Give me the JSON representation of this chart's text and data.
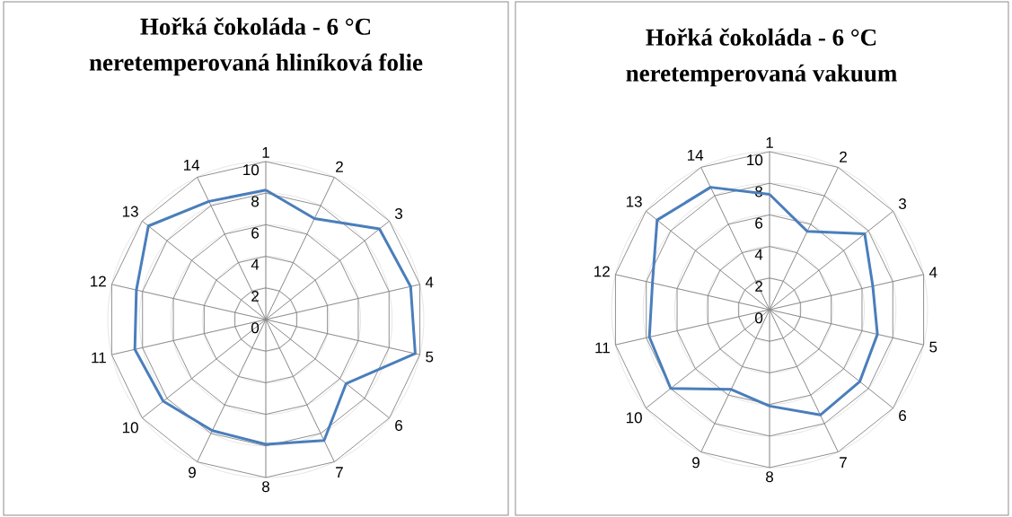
{
  "chart_data": [
    {
      "type": "radar",
      "title": "Hořká čokoláda -  6 °C neretemperovaná hliníková folie",
      "categories": [
        "1",
        "2",
        "3",
        "4",
        "5",
        "6",
        "7",
        "8",
        "9",
        "10",
        "11",
        "12",
        "13",
        "14"
      ],
      "series": [
        {
          "color": "#4a7ebb",
          "values": [
            8.2,
            7.1,
            9.2,
            9.4,
            9.7,
            6.5,
            8.5,
            7.9,
            7.8,
            8.3,
            8.5,
            8.4,
            9.5,
            8.3
          ]
        }
      ],
      "ylim": [
        0,
        10
      ],
      "yticks": [
        0,
        2,
        4,
        6,
        8,
        10
      ],
      "grid": true
    },
    {
      "type": "radar",
      "title": "Hořká čokoláda - 6 °C neretemperovaná vakuum",
      "categories": [
        "1",
        "2",
        "3",
        "4",
        "5",
        "6",
        "7",
        "8",
        "9",
        "10",
        "11",
        "12",
        "13",
        "14"
      ],
      "series": [
        {
          "color": "#4a7ebb",
          "values": [
            7.3,
            5.5,
            7.7,
            6.7,
            7.0,
            7.3,
            7.4,
            6.1,
            5.6,
            8.0,
            7.8,
            7.6,
            9.1,
            8.6
          ]
        }
      ],
      "ylim": [
        0,
        10
      ],
      "yticks": [
        0,
        2,
        4,
        6,
        8,
        10
      ],
      "grid": true
    }
  ]
}
